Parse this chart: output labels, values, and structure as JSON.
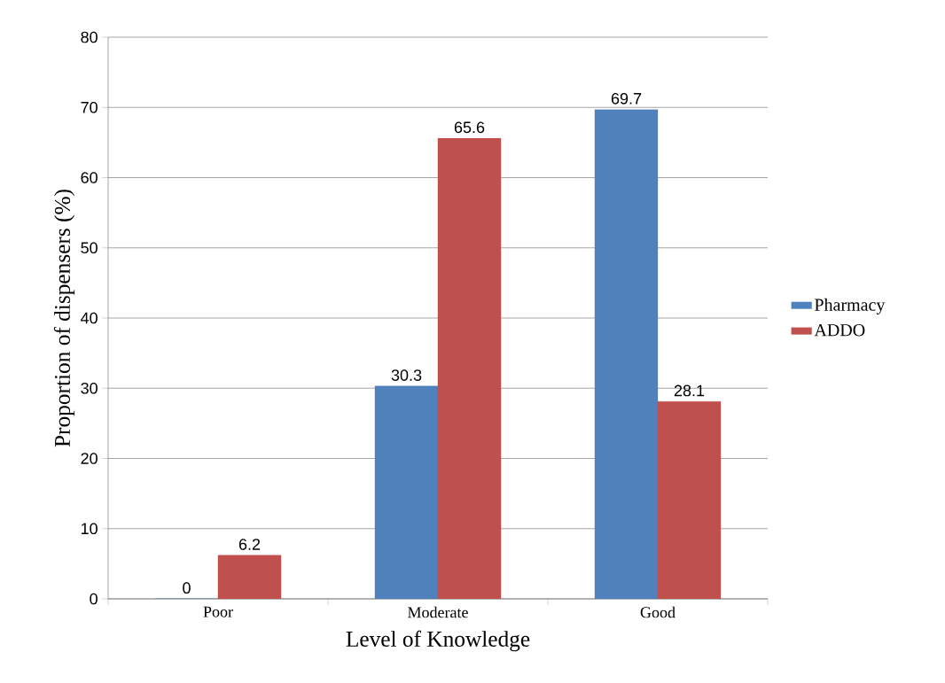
{
  "chart_data": {
    "type": "bar",
    "xlabel": "Level of Knowledge",
    "ylabel": "Proportion of dispensers (%)",
    "categories": [
      "Poor",
      "Moderate",
      "Good"
    ],
    "series": [
      {
        "name": "Pharmacy",
        "color": "#4f81bd",
        "values": [
          0,
          30.3,
          69.7
        ]
      },
      {
        "name": "ADDO",
        "color": "#c0504d",
        "values": [
          6.2,
          65.6,
          28.1
        ]
      }
    ],
    "ylim": [
      0,
      80
    ],
    "yticks": [
      0,
      10,
      20,
      30,
      40,
      50,
      60,
      70,
      80
    ],
    "grid": "y",
    "legend": "right",
    "data_labels": true
  }
}
